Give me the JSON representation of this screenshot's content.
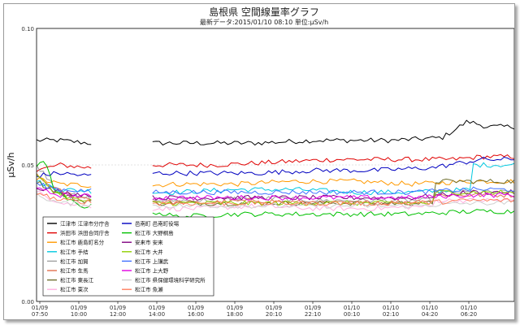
{
  "chart_data": {
    "type": "line",
    "title": "島根県 空間線量率グラフ",
    "subtitle": "最新データ:2015/01/10 08:10 単位:μSv/h",
    "ylabel": "μSv/h",
    "xlabel": "",
    "ylim": [
      0,
      0.1
    ],
    "yticks": [
      "0.00",
      "0.05",
      "0.10"
    ],
    "xticks": [
      {
        "date": "01/09",
        "time": "07:50"
      },
      {
        "date": "01/09",
        "time": "10:00"
      },
      {
        "date": "01/09",
        "time": "12:00"
      },
      {
        "date": "01/09",
        "time": "14:00"
      },
      {
        "date": "01/09",
        "time": "16:00"
      },
      {
        "date": "01/09",
        "time": "18:00"
      },
      {
        "date": "01/09",
        "time": "20:10"
      },
      {
        "date": "01/09",
        "time": "22:10"
      },
      {
        "date": "01/10",
        "time": "00:10"
      },
      {
        "date": "01/10",
        "time": "02:10"
      },
      {
        "date": "01/10",
        "time": "04:20"
      },
      {
        "date": "01/10",
        "time": "06:20"
      }
    ],
    "legend_placement": "bottom-left",
    "gap": [
      10.7,
      13.7
    ],
    "series": [
      {
        "name": "江津市 江津市分庁舎",
        "color": "#000000",
        "keys": [
          [
            7.83,
            0.059
          ],
          [
            9,
            0.059
          ],
          [
            10.5,
            0.058
          ],
          [
            13.7,
            0.058
          ],
          [
            16,
            0.058
          ],
          [
            19,
            0.058
          ],
          [
            22,
            0.059
          ],
          [
            2,
            0.059
          ],
          [
            4.5,
            0.06
          ],
          [
            5.8,
            0.066
          ],
          [
            6.8,
            0.064
          ],
          [
            8.17,
            0.062
          ]
        ]
      },
      {
        "name": "浜田市 浜田合同庁舎",
        "color": "#e00000",
        "keys": [
          [
            7.83,
            0.048
          ],
          [
            9,
            0.05
          ],
          [
            10.5,
            0.049
          ],
          [
            13.7,
            0.05
          ],
          [
            17,
            0.05
          ],
          [
            20,
            0.051
          ],
          [
            23,
            0.052
          ],
          [
            2,
            0.052
          ],
          [
            5,
            0.052
          ],
          [
            6.5,
            0.053
          ],
          [
            8.17,
            0.052
          ]
        ]
      },
      {
        "name": "松江市 鹿島町名分",
        "color": "#ff9900",
        "keys": [
          [
            7.83,
            0.045
          ],
          [
            9,
            0.043
          ],
          [
            12,
            0.042
          ],
          [
            15,
            0.043
          ],
          [
            18,
            0.043
          ],
          [
            21,
            0.044
          ],
          [
            0,
            0.044
          ],
          [
            3,
            0.043
          ],
          [
            6,
            0.044
          ],
          [
            8.17,
            0.045
          ]
        ]
      },
      {
        "name": "松江市 手結",
        "color": "#00c8e0",
        "keys": [
          [
            7.83,
            0.044
          ],
          [
            9,
            0.041
          ],
          [
            12,
            0.04
          ],
          [
            15,
            0.04
          ],
          [
            18,
            0.041
          ],
          [
            21,
            0.041
          ],
          [
            0,
            0.04
          ],
          [
            3,
            0.04
          ],
          [
            6,
            0.041
          ],
          [
            7.5,
            0.046
          ],
          [
            8.17,
            0.05
          ]
        ]
      },
      {
        "name": "松江市 加賀",
        "color": "#a0a0a0",
        "keys": [
          [
            7.83,
            0.05
          ],
          [
            8.8,
            0.042
          ],
          [
            10,
            0.038
          ],
          [
            13,
            0.037
          ],
          [
            16,
            0.037
          ],
          [
            19,
            0.038
          ],
          [
            22,
            0.037
          ],
          [
            1,
            0.037
          ],
          [
            4,
            0.037
          ],
          [
            7,
            0.039
          ],
          [
            8.17,
            0.04
          ]
        ]
      },
      {
        "name": "松江市 生馬",
        "color": "#e07050",
        "keys": [
          [
            7.83,
            0.046
          ],
          [
            8.8,
            0.041
          ],
          [
            10,
            0.038
          ],
          [
            13,
            0.037
          ],
          [
            16,
            0.036
          ],
          [
            19,
            0.037
          ],
          [
            22,
            0.036
          ],
          [
            1,
            0.036
          ],
          [
            4,
            0.037
          ],
          [
            7,
            0.038
          ],
          [
            8.17,
            0.039
          ]
        ]
      },
      {
        "name": "松江市 東長江",
        "color": "#707030",
        "keys": [
          [
            7.83,
            0.044
          ],
          [
            8.8,
            0.04
          ],
          [
            10,
            0.037
          ],
          [
            13,
            0.036
          ],
          [
            16,
            0.036
          ],
          [
            19,
            0.036
          ],
          [
            22,
            0.036
          ],
          [
            1,
            0.036
          ],
          [
            4,
            0.036
          ],
          [
            7,
            0.038
          ],
          [
            8.17,
            0.044
          ]
        ]
      },
      {
        "name": "松江市 東次",
        "color": "#ffb0e0",
        "keys": [
          [
            7.83,
            0.04
          ],
          [
            8.8,
            0.037
          ],
          [
            10,
            0.035
          ],
          [
            13,
            0.034
          ],
          [
            16,
            0.034
          ],
          [
            19,
            0.035
          ],
          [
            22,
            0.034
          ],
          [
            1,
            0.034
          ],
          [
            4,
            0.035
          ],
          [
            7,
            0.036
          ],
          [
            8.17,
            0.037
          ]
        ]
      },
      {
        "name": "邑南町 邑南町役場",
        "color": "#0000c0",
        "keys": [
          [
            7.83,
            0.046
          ],
          [
            9,
            0.047
          ],
          [
            10.5,
            0.046
          ],
          [
            13.7,
            0.047
          ],
          [
            16,
            0.047
          ],
          [
            19,
            0.047
          ],
          [
            22,
            0.048
          ],
          [
            1,
            0.048
          ],
          [
            4,
            0.049
          ],
          [
            6.5,
            0.052
          ],
          [
            8.17,
            0.055
          ]
        ]
      },
      {
        "name": "松江市 大野桐島",
        "color": "#00c000",
        "keys": [
          [
            7.83,
            0.05
          ],
          [
            8.2,
            0.052
          ],
          [
            8.8,
            0.04
          ],
          [
            10,
            0.035
          ],
          [
            13,
            0.034
          ],
          [
            15,
            0.031
          ],
          [
            18,
            0.032
          ],
          [
            21,
            0.032
          ],
          [
            0,
            0.032
          ],
          [
            3,
            0.032
          ],
          [
            6,
            0.033
          ],
          [
            8.17,
            0.035
          ]
        ]
      },
      {
        "name": "安来市 安来",
        "color": "#800080",
        "keys": [
          [
            7.83,
            0.042
          ],
          [
            9,
            0.04
          ],
          [
            12,
            0.038
          ],
          [
            15,
            0.038
          ],
          [
            18,
            0.038
          ],
          [
            21,
            0.038
          ],
          [
            0,
            0.038
          ],
          [
            3,
            0.038
          ],
          [
            6,
            0.04
          ],
          [
            8.17,
            0.043
          ]
        ]
      },
      {
        "name": "松江市 大井",
        "color": "#90d000",
        "keys": [
          [
            7.83,
            0.046
          ],
          [
            8.8,
            0.04
          ],
          [
            10,
            0.037
          ],
          [
            13,
            0.036
          ],
          [
            16,
            0.036
          ],
          [
            19,
            0.036
          ],
          [
            22,
            0.036
          ],
          [
            1,
            0.036
          ],
          [
            4,
            0.036
          ],
          [
            7,
            0.038
          ],
          [
            8.17,
            0.04
          ]
        ]
      },
      {
        "name": "松江市 上講武",
        "color": "#4070ff",
        "keys": [
          [
            7.83,
            0.043
          ],
          [
            9,
            0.041
          ],
          [
            12,
            0.04
          ],
          [
            15,
            0.04
          ],
          [
            18,
            0.04
          ],
          [
            21,
            0.04
          ],
          [
            0,
            0.04
          ],
          [
            3,
            0.04
          ],
          [
            6,
            0.041
          ],
          [
            8.17,
            0.044
          ]
        ]
      },
      {
        "name": "松江市 上大野",
        "color": "#e000e0",
        "keys": [
          [
            7.83,
            0.041
          ],
          [
            9,
            0.039
          ],
          [
            12,
            0.038
          ],
          [
            15,
            0.038
          ],
          [
            18,
            0.038
          ],
          [
            21,
            0.038
          ],
          [
            0,
            0.038
          ],
          [
            3,
            0.038
          ],
          [
            6,
            0.039
          ],
          [
            8.17,
            0.042
          ]
        ]
      },
      {
        "name": "松江市 県保健環境科学研究所",
        "color": "#d0d0d0",
        "keys": [
          [
            7.83,
            0.039
          ],
          [
            9,
            0.036
          ],
          [
            12,
            0.035
          ],
          [
            15,
            0.035
          ],
          [
            18,
            0.035
          ],
          [
            21,
            0.035
          ],
          [
            0,
            0.035
          ],
          [
            3,
            0.035
          ],
          [
            6,
            0.036
          ],
          [
            8.17,
            0.038
          ]
        ]
      },
      {
        "name": "松江市 魚瀬",
        "color": "#ff8060",
        "keys": [
          [
            7.83,
            0.04
          ],
          [
            9,
            0.037
          ],
          [
            12,
            0.036
          ],
          [
            15,
            0.036
          ],
          [
            18,
            0.036
          ],
          [
            21,
            0.036
          ],
          [
            0,
            0.036
          ],
          [
            3,
            0.036
          ],
          [
            6,
            0.037
          ],
          [
            8.17,
            0.039
          ]
        ]
      }
    ]
  }
}
